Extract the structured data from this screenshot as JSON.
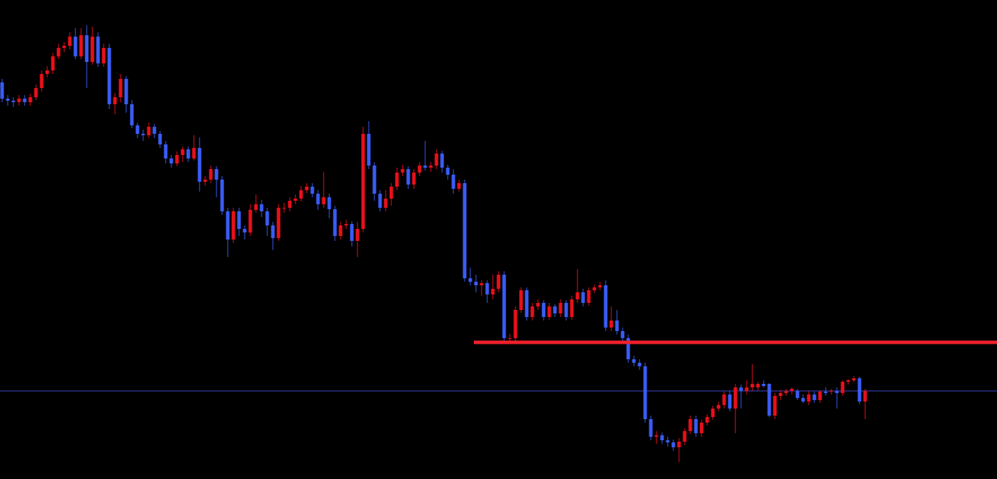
{
  "chart_data": {
    "type": "candlestick",
    "up_color": "#e8101a",
    "down_color": "#3a5cf5",
    "ylim": [
      0,
      680
    ],
    "open": [
      563,
      540,
      537,
      535,
      540,
      535,
      542,
      555,
      575,
      580,
      600,
      612,
      615,
      628,
      600,
      630,
      592,
      628,
      590,
      612,
      532,
      542,
      568,
      532,
      502,
      490,
      488,
      500,
      490,
      475,
      455,
      448,
      460,
      468,
      455,
      470,
      422,
      425,
      440,
      425,
      380,
      340,
      380,
      355,
      350,
      382,
      390,
      380,
      360,
      342,
      385,
      385,
      395,
      398,
      410,
      415,
      405,
      390,
      400,
      383,
      345,
      360,
      362,
      338,
      355,
      490,
      445,
      405,
      385,
      398,
      415,
      435,
      440,
      418,
      435,
      445,
      442,
      445,
      462,
      442,
      432,
      412,
      420,
      285,
      280,
      275,
      278,
      262,
      270,
      290,
      200,
      200,
      240,
      268,
      230,
      245,
      250,
      230,
      245,
      235,
      250,
      230,
      255,
      265,
      250,
      268,
      272,
      275,
      215,
      225,
      210,
      200,
      170,
      165,
      160,
      85,
      60,
      62,
      55,
      52,
      45,
      53,
      68,
      85,
      65,
      80,
      88,
      100,
      105,
      120,
      100,
      130,
      125,
      130,
      130,
      135,
      135,
      90,
      118,
      122,
      125,
      125,
      115,
      110,
      120,
      112,
      124,
      124,
      125,
      122,
      138,
      140,
      143,
      110
    ],
    "high": [
      568,
      545,
      542,
      545,
      545,
      547,
      560,
      580,
      586,
      605,
      618,
      620,
      634,
      640,
      640,
      644,
      642,
      634,
      618,
      618,
      548,
      575,
      572,
      538,
      506,
      496,
      506,
      504,
      494,
      480,
      460,
      465,
      472,
      472,
      488,
      485,
      430,
      445,
      444,
      430,
      385,
      385,
      385,
      360,
      390,
      404,
      396,
      385,
      365,
      390,
      392,
      400,
      404,
      416,
      420,
      420,
      410,
      436,
      405,
      388,
      365,
      368,
      366,
      365,
      500,
      508,
      450,
      410,
      410,
      420,
      442,
      446,
      444,
      440,
      450,
      480,
      450,
      468,
      466,
      446,
      440,
      425,
      425,
      300,
      290,
      282,
      282,
      290,
      295,
      295,
      206,
      245,
      272,
      272,
      250,
      255,
      254,
      250,
      248,
      255,
      254,
      260,
      298,
      270,
      272,
      276,
      280,
      282,
      245,
      240,
      215,
      205,
      175,
      170,
      165,
      90,
      68,
      66,
      60,
      56,
      58,
      72,
      90,
      90,
      84,
      92,
      104,
      110,
      124,
      125,
      135,
      134,
      140,
      163,
      138,
      140,
      136,
      122,
      126,
      128,
      130,
      128,
      120,
      125,
      124,
      126,
      130,
      128,
      130,
      140,
      142,
      146,
      145,
      128
    ],
    "low": [
      535,
      530,
      528,
      530,
      530,
      530,
      538,
      550,
      570,
      575,
      596,
      606,
      610,
      596,
      596,
      555,
      588,
      585,
      585,
      525,
      518,
      535,
      520,
      498,
      484,
      480,
      484,
      484,
      470,
      448,
      442,
      444,
      450,
      450,
      452,
      408,
      416,
      420,
      400,
      375,
      315,
      335,
      345,
      340,
      345,
      378,
      372,
      345,
      325,
      338,
      378,
      380,
      390,
      394,
      406,
      400,
      382,
      385,
      370,
      338,
      340,
      355,
      330,
      315,
      350,
      440,
      395,
      380,
      380,
      388,
      410,
      430,
      412,
      412,
      430,
      438,
      436,
      440,
      435,
      425,
      405,
      408,
      280,
      275,
      265,
      260,
      250,
      255,
      265,
      195,
      194,
      195,
      236,
      225,
      225,
      240,
      225,
      226,
      230,
      230,
      225,
      226,
      250,
      245,
      246,
      264,
      268,
      210,
      210,
      205,
      195,
      165,
      160,
      155,
      80,
      55,
      50,
      50,
      46,
      40,
      24,
      48,
      64,
      60,
      60,
      76,
      84,
      96,
      100,
      96,
      65,
      100,
      120,
      125,
      126,
      130,
      88,
      85,
      112,
      118,
      120,
      112,
      108,
      105,
      108,
      108,
      118,
      120,
      100,
      118,
      134,
      138,
      106,
      85
    ],
    "close": [
      540,
      537,
      535,
      540,
      535,
      542,
      555,
      575,
      580,
      600,
      612,
      615,
      628,
      600,
      630,
      592,
      628,
      590,
      612,
      532,
      542,
      568,
      532,
      502,
      490,
      488,
      500,
      490,
      475,
      455,
      448,
      460,
      468,
      455,
      470,
      422,
      425,
      440,
      425,
      380,
      340,
      380,
      355,
      350,
      382,
      390,
      380,
      360,
      342,
      385,
      385,
      395,
      398,
      410,
      415,
      405,
      390,
      400,
      383,
      345,
      360,
      362,
      338,
      355,
      490,
      445,
      405,
      385,
      398,
      415,
      435,
      440,
      418,
      435,
      445,
      442,
      445,
      462,
      442,
      432,
      412,
      420,
      285,
      280,
      275,
      278,
      262,
      270,
      290,
      200,
      200,
      240,
      268,
      230,
      245,
      250,
      230,
      245,
      235,
      250,
      230,
      255,
      265,
      250,
      268,
      272,
      275,
      215,
      225,
      210,
      200,
      170,
      165,
      160,
      85,
      60,
      62,
      55,
      52,
      45,
      53,
      68,
      85,
      65,
      80,
      88,
      100,
      105,
      120,
      100,
      130,
      125,
      130,
      135,
      135,
      132,
      90,
      118,
      122,
      125,
      128,
      115,
      110,
      120,
      112,
      124,
      122,
      125,
      122,
      138,
      140,
      143,
      110,
      125
    ],
    "support_line": {
      "value": 194,
      "start_index": 84,
      "color": "#f0202c"
    },
    "price_line": {
      "value": 125,
      "color": "#3f48cc"
    }
  }
}
